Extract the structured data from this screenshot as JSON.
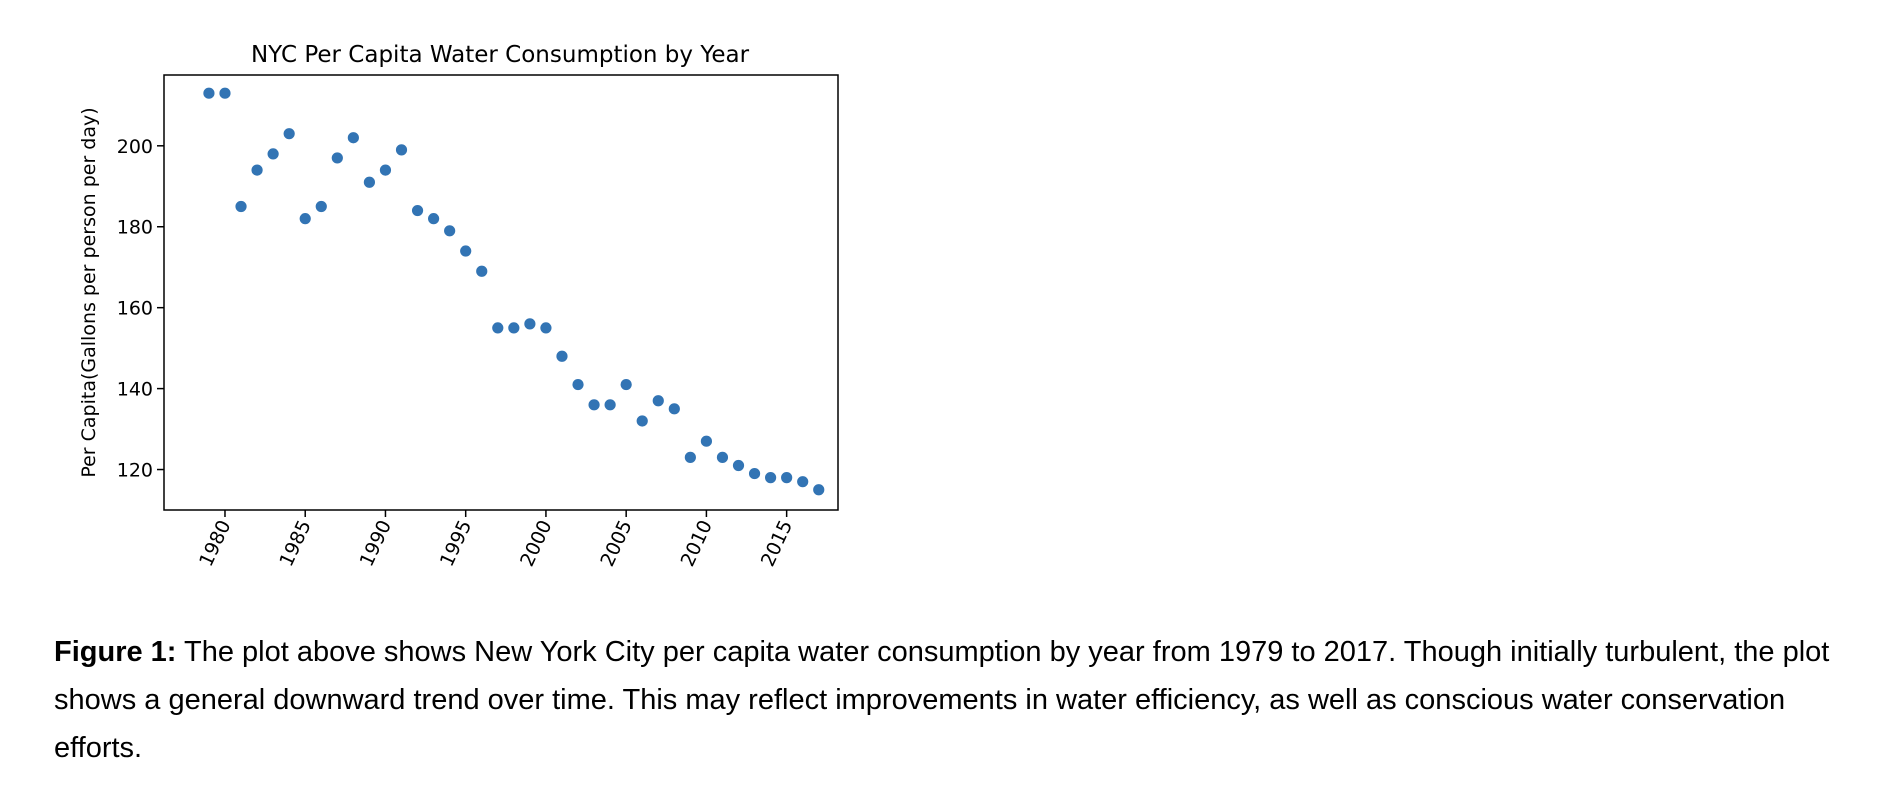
{
  "chart_data": {
    "type": "scatter",
    "title": "NYC Per Capita Water Consumption by Year",
    "ylabel": "Per Capita(Gallons per person per day)",
    "xlabel": "",
    "xlim": [
      1976.2,
      2018.2
    ],
    "ylim": [
      110,
      217.5
    ],
    "xticks": [
      1980,
      1985,
      1990,
      1995,
      2000,
      2005,
      2010,
      2015
    ],
    "yticks": [
      120,
      140,
      160,
      180,
      200
    ],
    "grid": false,
    "marker_color": "#3274b4",
    "x": [
      1979,
      1980,
      1981,
      1982,
      1983,
      1984,
      1985,
      1986,
      1987,
      1988,
      1989,
      1990,
      1991,
      1992,
      1993,
      1994,
      1995,
      1996,
      1997,
      1998,
      1999,
      2000,
      2001,
      2002,
      2003,
      2004,
      2005,
      2006,
      2007,
      2008,
      2009,
      2010,
      2011,
      2012,
      2013,
      2014,
      2015,
      2016,
      2017
    ],
    "y": [
      213,
      213,
      185,
      194,
      198,
      203,
      182,
      185,
      197,
      202,
      191,
      194,
      199,
      184,
      182,
      179,
      174,
      169,
      155,
      155,
      156,
      155,
      148,
      141,
      136,
      136,
      141,
      132,
      137,
      135,
      123,
      127,
      123,
      121,
      119,
      118,
      118,
      117,
      115
    ]
  },
  "caption": {
    "label": "Figure 1:",
    "text": " The plot above shows New York City per capita water consumption by year from 1979 to 2017. Though initially turbulent, the plot shows a general downward trend over time. This may reflect improvements in water efficiency, as well as conscious water conservation efforts."
  }
}
